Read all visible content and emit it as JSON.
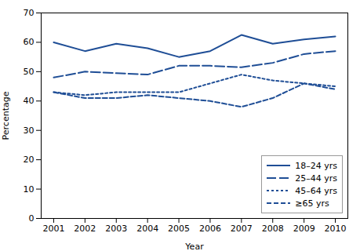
{
  "chart_data": {
    "type": "line",
    "x": [
      2001,
      2002,
      2003,
      2004,
      2005,
      2006,
      2007,
      2008,
      2009,
      2010
    ],
    "series": [
      {
        "name": "18–24 yrs",
        "color": "#1F4E96",
        "line_style": "solid",
        "values": [
          60,
          57,
          59.5,
          58,
          55,
          57,
          62.5,
          59.5,
          61,
          62
        ]
      },
      {
        "name": "25–44 yrs",
        "color": "#1F4E96",
        "line_style": "long_dash",
        "values": [
          48,
          50,
          49.5,
          49,
          52,
          52,
          51.5,
          53,
          56,
          57
        ]
      },
      {
        "name": "45–64 yrs",
        "color": "#1F4E96",
        "line_style": "dotted",
        "values": [
          43,
          42,
          43,
          43,
          43,
          46,
          49,
          47,
          46,
          45
        ]
      },
      {
        "name": "≥65 yrs",
        "color": "#1F4E96",
        "line_style": "dashed",
        "values": [
          43,
          41,
          41,
          42,
          41,
          40,
          38,
          41,
          46,
          44
        ]
      }
    ],
    "xlabel": "Year",
    "ylabel": "Percentage",
    "xlim": [
      2000.6,
      2010.4
    ],
    "xticks": [
      2001,
      2002,
      2003,
      2004,
      2005,
      2006,
      2007,
      2008,
      2009,
      2010
    ],
    "ylim": [
      0,
      70
    ],
    "yticks": [
      0,
      10,
      20,
      30,
      40,
      50,
      60,
      70
    ],
    "grid": false,
    "legend": "lower right"
  }
}
